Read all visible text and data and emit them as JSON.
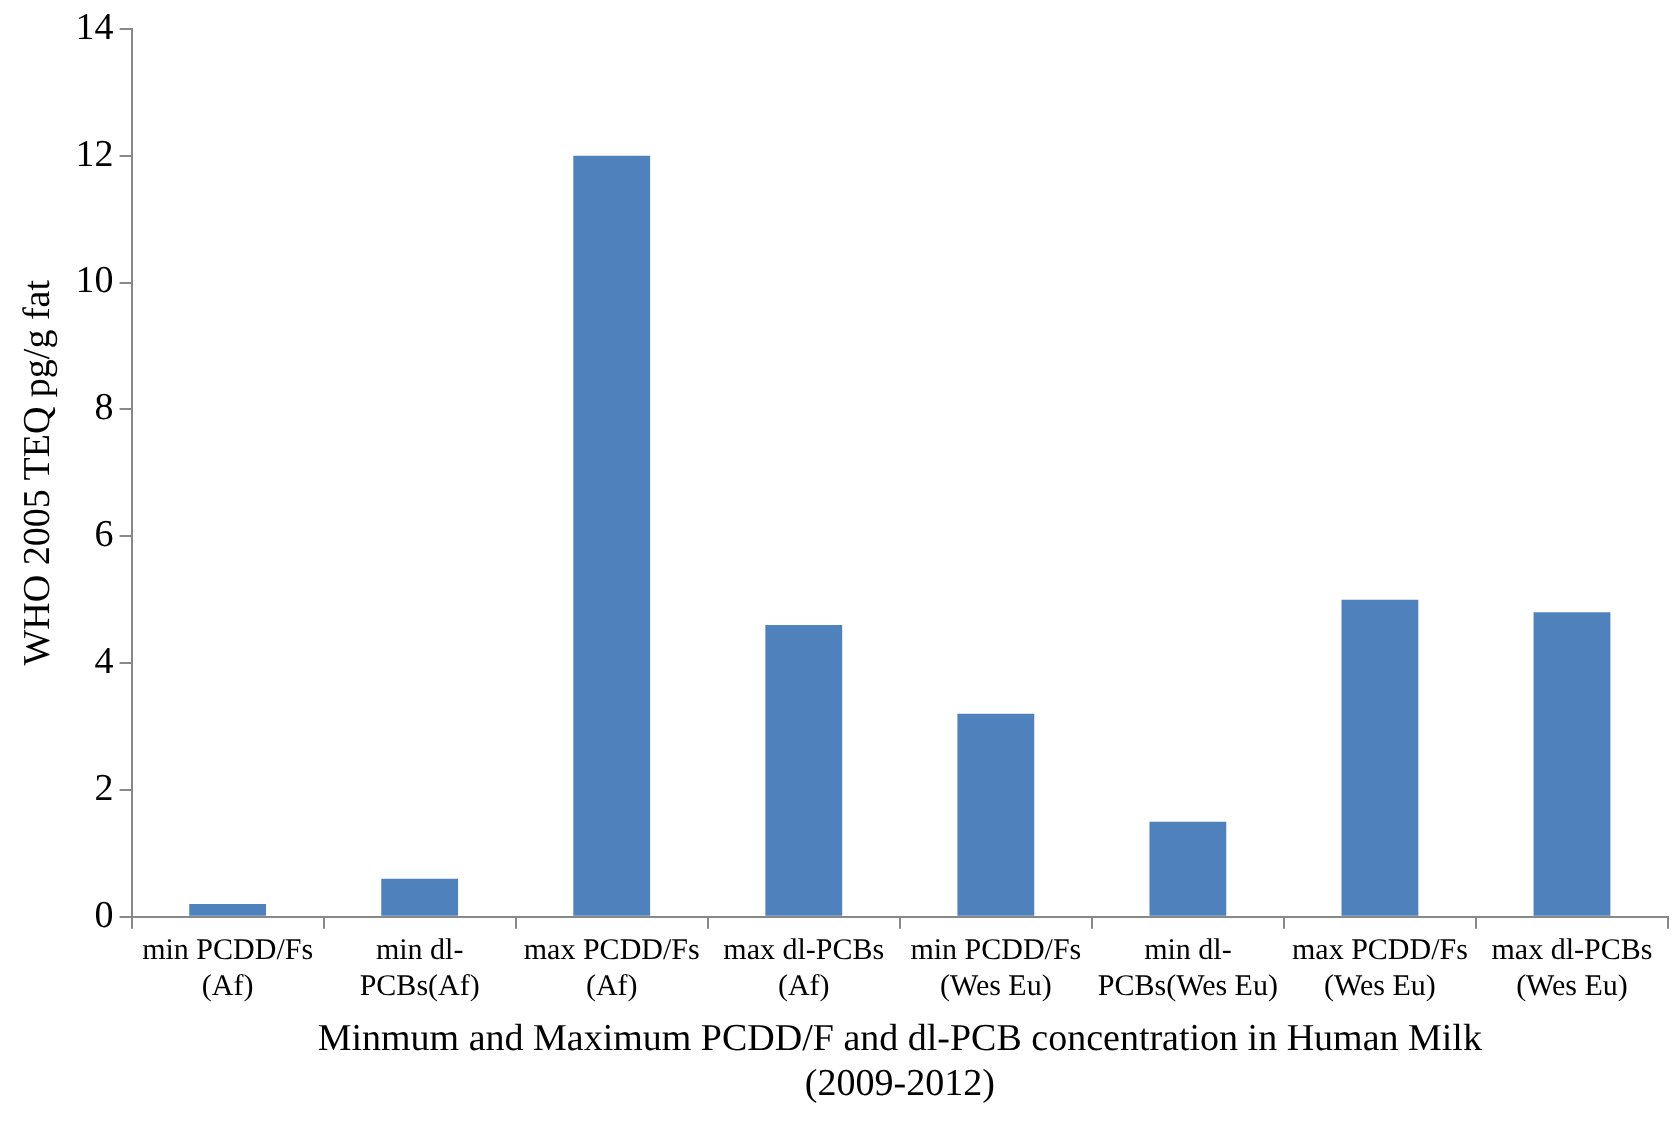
{
  "chart_data": {
    "type": "bar",
    "categories": [
      "min PCDD/Fs (Af)",
      "min dl-PCBs(Af)",
      "max PCDD/Fs (Af)",
      "max dl-PCBs (Af)",
      "min PCDD/Fs (Wes Eu)",
      "min dl-PCBs(Wes Eu)",
      "max PCDD/Fs (Wes Eu)",
      "max dl-PCBs (Wes Eu)"
    ],
    "values": [
      0.2,
      0.6,
      12,
      4.6,
      3.2,
      1.5,
      5.0,
      4.8
    ],
    "color": "#4f81bd",
    "xlabel": "Minmum and Maximum PCDD/F and dl-PCB concentration in Human Milk (2009-2012)",
    "ylabel": "WHO 2005 TEQ pg/g fat",
    "ylim": [
      0,
      14
    ],
    "yticks": [
      0,
      2,
      4,
      6,
      8,
      10,
      12,
      14
    ],
    "grid": false,
    "legend": false
  }
}
